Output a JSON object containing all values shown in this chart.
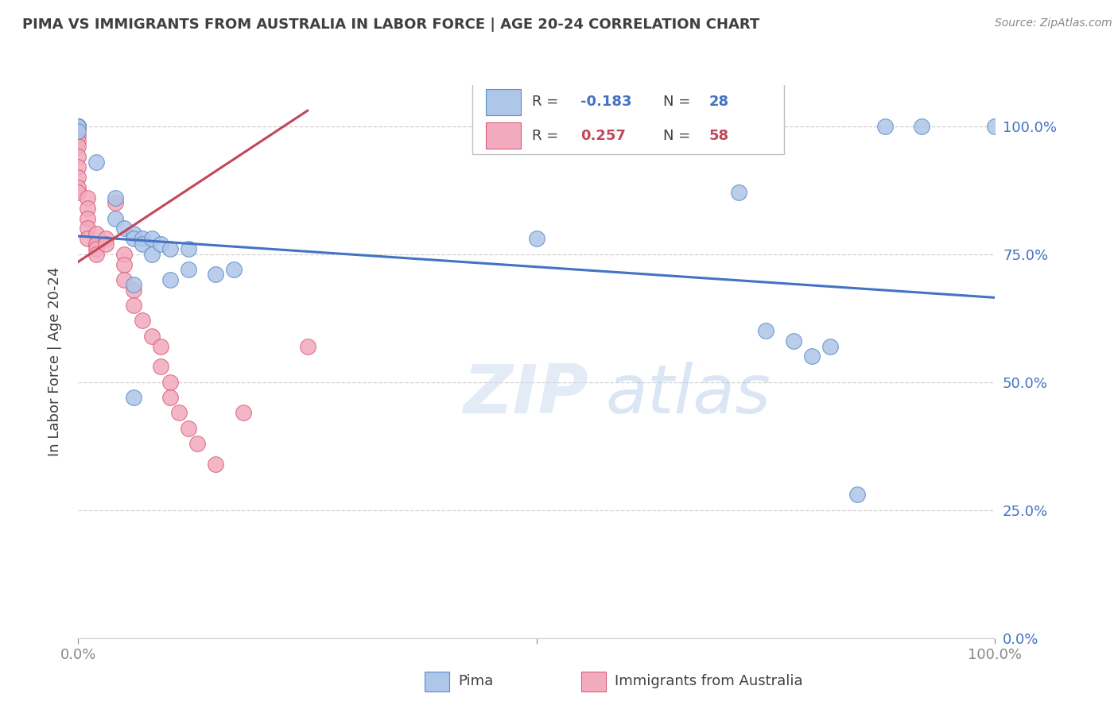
{
  "title": "PIMA VS IMMIGRANTS FROM AUSTRALIA IN LABOR FORCE | AGE 20-24 CORRELATION CHART",
  "source": "Source: ZipAtlas.com",
  "ylabel": "In Labor Force | Age 20-24",
  "legend_blue_r": "-0.183",
  "legend_blue_n": "28",
  "legend_pink_r": "0.257",
  "legend_pink_n": "58",
  "legend_label_blue": "Pima",
  "legend_label_pink": "Immigrants from Australia",
  "watermark_zip": "ZIP",
  "watermark_atlas": "atlas",
  "blue_color": "#aec6e8",
  "pink_color": "#f2aabe",
  "blue_edge_color": "#5b8dc8",
  "pink_edge_color": "#d9607a",
  "blue_line_color": "#4472c4",
  "pink_line_color": "#c0485a",
  "right_tick_color": "#4472c4",
  "title_color": "#404040",
  "source_color": "#888888",
  "ylabel_color": "#404040",
  "grid_color": "#d0d0d0",
  "bottom_tick_color": "#888888",
  "xlim": [
    0.0,
    1.0
  ],
  "ylim": [
    0.0,
    1.08
  ],
  "ytick_positions": [
    0.0,
    0.25,
    0.5,
    0.75,
    1.0
  ],
  "ytick_labels": [
    "0.0%",
    "25.0%",
    "50.0%",
    "75.0%",
    "100.0%"
  ],
  "xtick_positions": [
    0.0,
    0.5,
    1.0
  ],
  "xtick_labels": [
    "0.0%",
    "",
    "100.0%"
  ],
  "blue_scatter": [
    [
      0.0,
      1.0
    ],
    [
      0.0,
      1.0
    ],
    [
      0.0,
      0.99
    ],
    [
      0.02,
      0.93
    ],
    [
      0.04,
      0.86
    ],
    [
      0.04,
      0.82
    ],
    [
      0.05,
      0.8
    ],
    [
      0.06,
      0.79
    ],
    [
      0.06,
      0.78
    ],
    [
      0.07,
      0.78
    ],
    [
      0.07,
      0.77
    ],
    [
      0.08,
      0.78
    ],
    [
      0.08,
      0.75
    ],
    [
      0.09,
      0.77
    ],
    [
      0.1,
      0.76
    ],
    [
      0.12,
      0.76
    ],
    [
      0.12,
      0.72
    ],
    [
      0.15,
      0.71
    ],
    [
      0.17,
      0.72
    ],
    [
      0.06,
      0.69
    ],
    [
      0.1,
      0.7
    ],
    [
      0.06,
      0.47
    ],
    [
      0.5,
      0.78
    ],
    [
      0.72,
      0.87
    ],
    [
      0.75,
      0.6
    ],
    [
      0.78,
      0.58
    ],
    [
      0.8,
      0.55
    ],
    [
      0.82,
      0.57
    ],
    [
      0.85,
      0.28
    ],
    [
      0.88,
      1.0
    ],
    [
      0.92,
      1.0
    ],
    [
      1.0,
      1.0
    ]
  ],
  "pink_scatter": [
    [
      0.0,
      1.0
    ],
    [
      0.0,
      1.0
    ],
    [
      0.0,
      1.0
    ],
    [
      0.0,
      1.0
    ],
    [
      0.0,
      1.0
    ],
    [
      0.0,
      0.98
    ],
    [
      0.0,
      0.97
    ],
    [
      0.0,
      0.96
    ],
    [
      0.0,
      0.94
    ],
    [
      0.0,
      0.92
    ],
    [
      0.0,
      0.9
    ],
    [
      0.0,
      0.88
    ],
    [
      0.0,
      0.87
    ],
    [
      0.01,
      0.86
    ],
    [
      0.01,
      0.84
    ],
    [
      0.01,
      0.82
    ],
    [
      0.01,
      0.8
    ],
    [
      0.01,
      0.78
    ],
    [
      0.02,
      0.79
    ],
    [
      0.02,
      0.77
    ],
    [
      0.02,
      0.76
    ],
    [
      0.02,
      0.75
    ],
    [
      0.03,
      0.78
    ],
    [
      0.03,
      0.77
    ],
    [
      0.04,
      0.85
    ],
    [
      0.05,
      0.75
    ],
    [
      0.05,
      0.73
    ],
    [
      0.05,
      0.7
    ],
    [
      0.06,
      0.68
    ],
    [
      0.06,
      0.65
    ],
    [
      0.07,
      0.62
    ],
    [
      0.08,
      0.59
    ],
    [
      0.09,
      0.57
    ],
    [
      0.09,
      0.53
    ],
    [
      0.1,
      0.5
    ],
    [
      0.1,
      0.47
    ],
    [
      0.11,
      0.44
    ],
    [
      0.12,
      0.41
    ],
    [
      0.13,
      0.38
    ],
    [
      0.15,
      0.34
    ],
    [
      0.18,
      0.44
    ],
    [
      0.25,
      0.57
    ]
  ],
  "blue_trendline_x": [
    0.0,
    1.0
  ],
  "blue_trendline_y": [
    0.785,
    0.665
  ],
  "pink_trendline_x": [
    0.0,
    0.25
  ],
  "pink_trendline_y": [
    0.735,
    1.03
  ]
}
